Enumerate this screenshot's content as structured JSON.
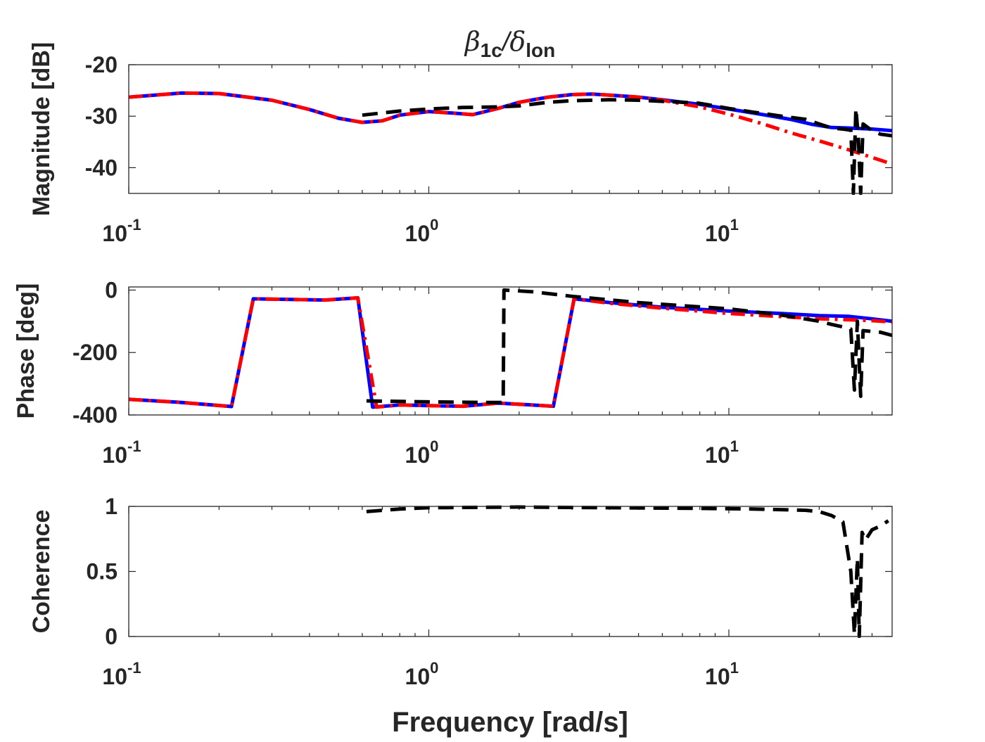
{
  "chart_data": {
    "type": "line",
    "title": {
      "base": "β",
      "sub1": "1c",
      "slash": "/",
      "delta": "δ",
      "sub2": "lon"
    },
    "xlabel": "Frequency [rad/s]",
    "xscale": "log",
    "xlim": [
      0.1,
      35
    ],
    "xticks": [
      {
        "base": "10",
        "exp": "-1",
        "value": 0.1
      },
      {
        "base": "10",
        "exp": "0",
        "value": 1
      },
      {
        "base": "10",
        "exp": "1",
        "value": 10
      }
    ],
    "series_styles": [
      {
        "name": "series-blue",
        "color": "#0000ff",
        "style": "solid"
      },
      {
        "name": "series-red",
        "color": "#ff0000",
        "style": "dashdot"
      },
      {
        "name": "series-black",
        "color": "#000000",
        "style": "dashed"
      }
    ],
    "panels": [
      {
        "id": "magnitude",
        "ylabel": "Magnitude [dB]",
        "ylim": [
          -45,
          -20
        ],
        "yticks": [
          {
            "label": "-20",
            "value": -20
          },
          {
            "label": "-30",
            "value": -30
          },
          {
            "label": "-40",
            "value": -40
          }
        ],
        "series": [
          {
            "name": "series-blue",
            "points": [
              [
                0.1,
                -26.3
              ],
              [
                0.15,
                -25.5
              ],
              [
                0.2,
                -25.6
              ],
              [
                0.3,
                -26.9
              ],
              [
                0.4,
                -28.7
              ],
              [
                0.5,
                -30.4
              ],
              [
                0.6,
                -31.2
              ],
              [
                0.7,
                -30.9
              ],
              [
                0.8,
                -29.8
              ],
              [
                1.0,
                -29.1
              ],
              [
                1.2,
                -29.4
              ],
              [
                1.4,
                -29.7
              ],
              [
                1.7,
                -28.5
              ],
              [
                2.0,
                -27.3
              ],
              [
                2.5,
                -26.3
              ],
              [
                3.0,
                -25.8
              ],
              [
                3.5,
                -25.7
              ],
              [
                4.0,
                -25.9
              ],
              [
                5.0,
                -26.3
              ],
              [
                6.0,
                -26.8
              ],
              [
                8.0,
                -27.7
              ],
              [
                10.0,
                -28.6
              ],
              [
                13.0,
                -29.7
              ],
              [
                16.0,
                -30.6
              ],
              [
                19.0,
                -31.6
              ],
              [
                22.0,
                -32.2
              ],
              [
                25.0,
                -32.3
              ],
              [
                30.0,
                -32.5
              ],
              [
                35.0,
                -32.8
              ]
            ]
          },
          {
            "name": "series-red",
            "points": [
              [
                0.1,
                -26.3
              ],
              [
                0.15,
                -25.5
              ],
              [
                0.2,
                -25.6
              ],
              [
                0.3,
                -26.9
              ],
              [
                0.4,
                -28.7
              ],
              [
                0.5,
                -30.4
              ],
              [
                0.6,
                -31.2
              ],
              [
                0.7,
                -30.9
              ],
              [
                0.8,
                -29.8
              ],
              [
                1.0,
                -29.1
              ],
              [
                1.2,
                -29.4
              ],
              [
                1.4,
                -29.7
              ],
              [
                1.7,
                -28.5
              ],
              [
                2.0,
                -27.3
              ],
              [
                2.5,
                -26.3
              ],
              [
                3.0,
                -25.8
              ],
              [
                3.5,
                -25.7
              ],
              [
                4.0,
                -25.9
              ],
              [
                5.0,
                -26.3
              ],
              [
                6.0,
                -26.9
              ],
              [
                8.0,
                -28.2
              ],
              [
                10.0,
                -29.6
              ],
              [
                13.0,
                -31.5
              ],
              [
                16.0,
                -33.2
              ],
              [
                20.0,
                -34.8
              ],
              [
                25.0,
                -36.5
              ],
              [
                30.0,
                -38.0
              ],
              [
                35.0,
                -39.3
              ]
            ]
          },
          {
            "name": "series-black",
            "points": [
              [
                0.6,
                -29.8
              ],
              [
                0.8,
                -29.0
              ],
              [
                1.0,
                -28.6
              ],
              [
                1.3,
                -28.3
              ],
              [
                1.7,
                -28.2
              ],
              [
                2.0,
                -28.0
              ],
              [
                2.5,
                -27.3
              ],
              [
                3.0,
                -27.0
              ],
              [
                4.0,
                -26.8
              ],
              [
                5.0,
                -26.9
              ],
              [
                7.0,
                -27.3
              ],
              [
                8.0,
                -27.5
              ],
              [
                10.0,
                -28.5
              ],
              [
                12.0,
                -29.2
              ],
              [
                15.0,
                -30.0
              ],
              [
                18.0,
                -30.6
              ],
              [
                20.0,
                -31.5
              ],
              [
                22.0,
                -32.3
              ],
              [
                24.0,
                -32.5
              ],
              [
                25.5,
                -32.7
              ],
              [
                26.0,
                -45
              ],
              [
                26.5,
                -28.5
              ],
              [
                27.0,
                -34.0
              ],
              [
                27.5,
                -45
              ],
              [
                28.0,
                -31.5
              ],
              [
                30.0,
                -32.8
              ],
              [
                32.0,
                -33.5
              ],
              [
                35.0,
                -33.8
              ]
            ]
          }
        ]
      },
      {
        "id": "phase",
        "ylabel": "Phase [deg]",
        "ylim": [
          -400,
          10
        ],
        "yticks": [
          {
            "label": "0",
            "value": 0
          },
          {
            "label": "-200",
            "value": -200
          },
          {
            "label": "-400",
            "value": -400
          }
        ],
        "series": [
          {
            "name": "series-blue",
            "points": [
              [
                0.1,
                -350
              ],
              [
                0.15,
                -360
              ],
              [
                0.22,
                -373
              ],
              [
                0.26,
                -28
              ],
              [
                0.35,
                -30
              ],
              [
                0.45,
                -32
              ],
              [
                0.58,
                -25
              ],
              [
                0.65,
                -375
              ],
              [
                0.8,
                -368
              ],
              [
                1.0,
                -370
              ],
              [
                1.3,
                -372
              ],
              [
                1.7,
                -362
              ],
              [
                2.2,
                -368
              ],
              [
                2.6,
                -372
              ],
              [
                3.05,
                -28
              ],
              [
                4.0,
                -40
              ],
              [
                6.0,
                -55
              ],
              [
                10.0,
                -67
              ],
              [
                15.0,
                -75
              ],
              [
                20.0,
                -82
              ],
              [
                25.0,
                -84
              ],
              [
                30.0,
                -92
              ],
              [
                35.0,
                -100
              ]
            ]
          },
          {
            "name": "series-red",
            "points": [
              [
                0.1,
                -350
              ],
              [
                0.15,
                -360
              ],
              [
                0.22,
                -373
              ],
              [
                0.26,
                -28
              ],
              [
                0.35,
                -30
              ],
              [
                0.45,
                -32
              ],
              [
                0.58,
                -25
              ],
              [
                0.67,
                -375
              ],
              [
                0.8,
                -368
              ],
              [
                1.0,
                -370
              ],
              [
                1.3,
                -372
              ],
              [
                1.7,
                -362
              ],
              [
                2.2,
                -368
              ],
              [
                2.6,
                -372
              ],
              [
                3.05,
                -28
              ],
              [
                4.0,
                -42
              ],
              [
                6.0,
                -58
              ],
              [
                10.0,
                -75
              ],
              [
                15.0,
                -85
              ],
              [
                20.0,
                -92
              ],
              [
                25.0,
                -95
              ],
              [
                30.0,
                -98
              ],
              [
                35.0,
                -102
              ]
            ]
          },
          {
            "name": "series-black",
            "points": [
              [
                0.62,
                -355
              ],
              [
                1.0,
                -358
              ],
              [
                1.5,
                -360
              ],
              [
                1.77,
                -360
              ],
              [
                1.78,
                0
              ],
              [
                2.2,
                -5
              ],
              [
                3.0,
                -20
              ],
              [
                5.0,
                -40
              ],
              [
                7.0,
                -50
              ],
              [
                10.0,
                -60
              ],
              [
                15.0,
                -80
              ],
              [
                20.0,
                -100
              ],
              [
                22.0,
                -110
              ],
              [
                24.0,
                -118
              ],
              [
                25.5,
                -125
              ],
              [
                26.2,
                -320
              ],
              [
                26.8,
                -100
              ],
              [
                27.5,
                -340
              ],
              [
                28.0,
                -130
              ],
              [
                32.0,
                -135
              ],
              [
                35.0,
                -145
              ]
            ]
          }
        ]
      },
      {
        "id": "coherence",
        "ylabel": "Coherence",
        "ylim": [
          0,
          1
        ],
        "yticks": [
          {
            "label": "0",
            "value": 0
          },
          {
            "label": "0.5",
            "value": 0.5
          },
          {
            "label": "1",
            "value": 1
          }
        ],
        "series": [
          {
            "name": "series-black",
            "points": [
              [
                0.62,
                0.96
              ],
              [
                0.8,
                0.98
              ],
              [
                1.0,
                0.99
              ],
              [
                2.0,
                0.995
              ],
              [
                4.0,
                0.99
              ],
              [
                8.0,
                0.985
              ],
              [
                12.0,
                0.98
              ],
              [
                18.0,
                0.97
              ],
              [
                20.0,
                0.96
              ],
              [
                22.0,
                0.93
              ],
              [
                24.0,
                0.88
              ],
              [
                25.5,
                0.5
              ],
              [
                26.2,
                0.02
              ],
              [
                26.8,
                0.6
              ],
              [
                27.2,
                0.0
              ],
              [
                27.8,
                0.8
              ],
              [
                28.5,
                0.74
              ],
              [
                30.0,
                0.82
              ],
              [
                32.0,
                0.85
              ],
              [
                34.0,
                0.89
              ]
            ]
          }
        ]
      }
    ]
  }
}
